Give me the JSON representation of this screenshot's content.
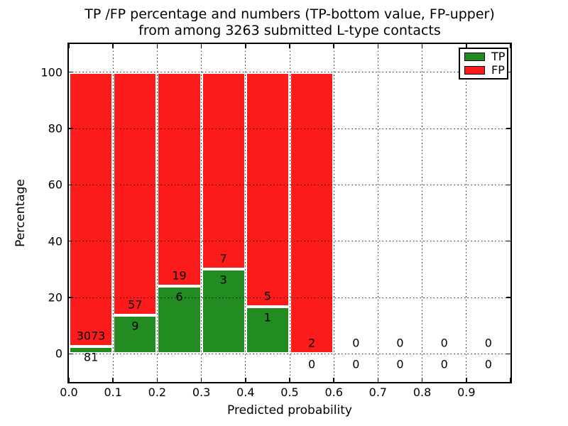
{
  "figure": {
    "title_line1": "TP /FP percentage and numbers (TP-bottom value, FP-upper)",
    "title_line2": "from among 3263 submitted L-type contacts"
  },
  "axes": {
    "xlabel": "Predicted probability",
    "ylabel": "Percentage"
  },
  "legend": {
    "items": [
      {
        "label": "TP",
        "color": "#228b22"
      },
      {
        "label": "FP",
        "color": "#fb1b1b"
      }
    ],
    "position": "upper right"
  },
  "colors": {
    "tp": "#228b22",
    "fp": "#fb1b1b",
    "bar_edge": "#ffffff",
    "grid": "#000000",
    "spine": "#000000",
    "text": "#000000",
    "background": "#ffffff"
  },
  "chart_data": {
    "type": "bar",
    "stacked": true,
    "normalized_to_percent": true,
    "title": "TP /FP percentage and numbers (TP-bottom value, FP-upper) from among 3263 submitted L-type contacts",
    "xlabel": "Predicted probability",
    "ylabel": "Percentage",
    "total_submitted_contacts": 3263,
    "bin_width": 0.1,
    "bin_left_edges": [
      0.0,
      0.1,
      0.2,
      0.3,
      0.4,
      0.5,
      0.6,
      0.7,
      0.8,
      0.9
    ],
    "series": [
      {
        "name": "TP",
        "color": "#228b22",
        "counts": [
          81,
          9,
          6,
          3,
          1,
          0,
          0,
          0,
          0,
          0
        ]
      },
      {
        "name": "FP",
        "color": "#fb1b1b",
        "counts": [
          3073,
          57,
          19,
          7,
          5,
          2,
          0,
          0,
          0,
          0
        ]
      }
    ],
    "tp_percent_per_bin": [
      2.57,
      13.64,
      24.0,
      30.0,
      16.67,
      0,
      null,
      null,
      null,
      null
    ],
    "xlim": [
      0.0,
      1.0
    ],
    "ylim": [
      -10,
      110
    ],
    "xtick_values": [
      0.0,
      0.1,
      0.2,
      0.3,
      0.4,
      0.5,
      0.6,
      0.7,
      0.8,
      0.9
    ],
    "xtick_labels": [
      "0.0",
      "0.1",
      "0.2",
      "0.3",
      "0.4",
      "0.5",
      "0.6",
      "0.7",
      "0.8",
      "0.9"
    ],
    "ytick_values": [
      0,
      20,
      40,
      60,
      80,
      100
    ],
    "ytick_labels": [
      "0",
      "20",
      "40",
      "60",
      "80",
      "100"
    ],
    "grid": "dotted",
    "legend_position": "upper right"
  }
}
